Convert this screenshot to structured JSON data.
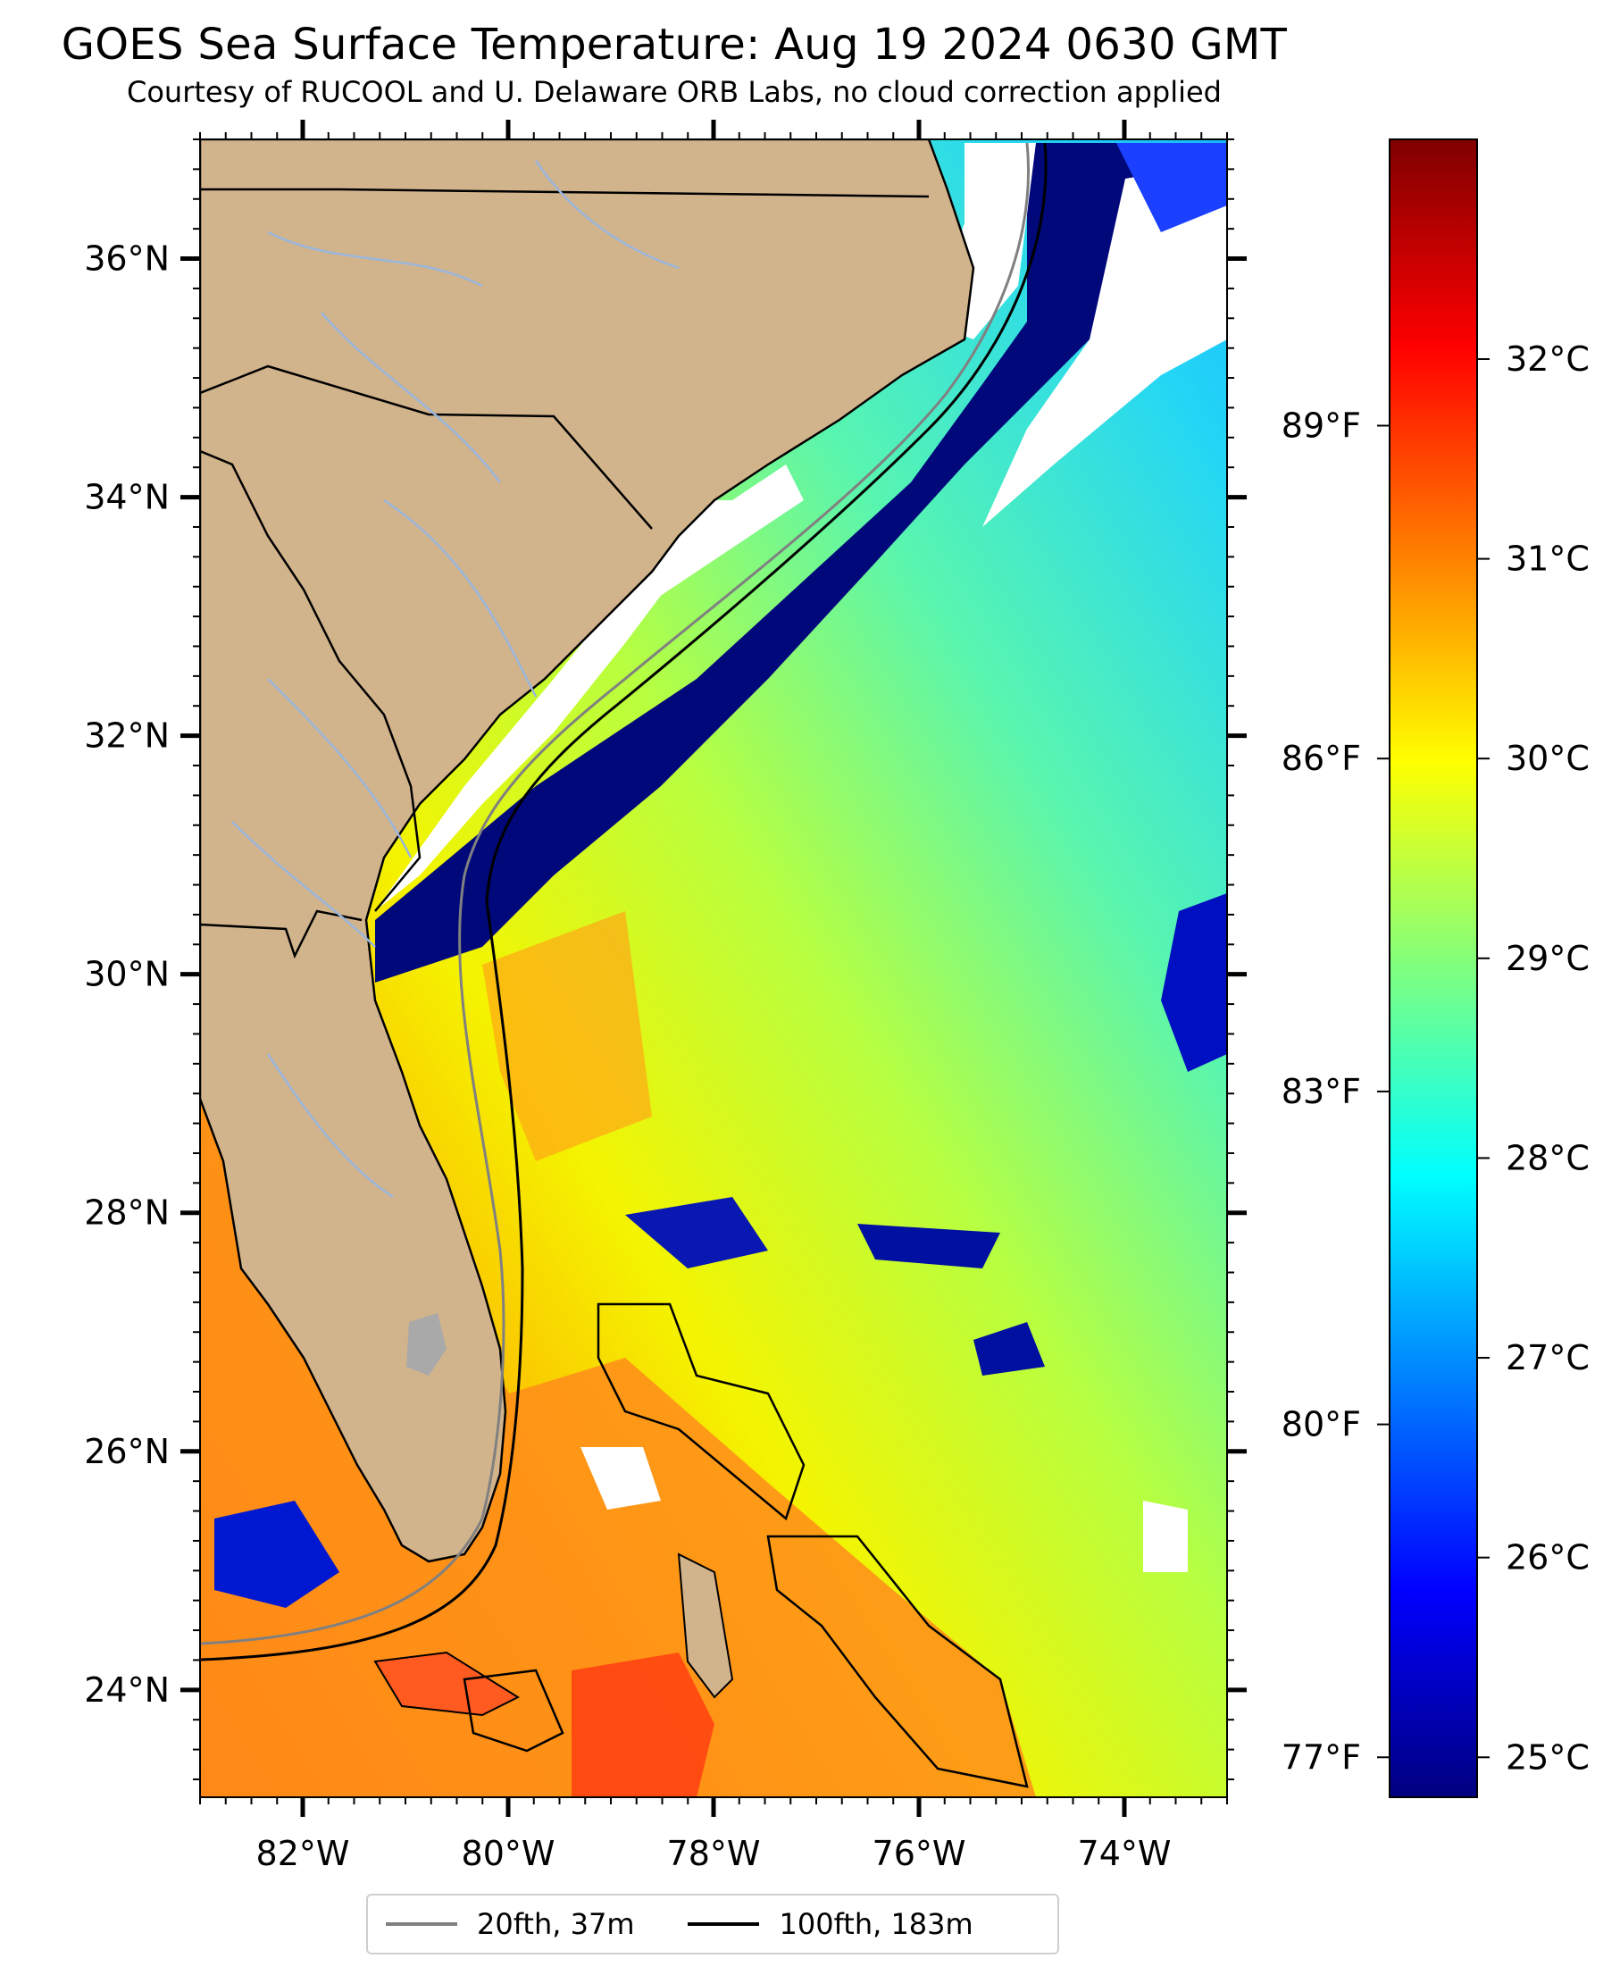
{
  "title": "GOES Sea Surface Temperature: Aug 19 2024 0630 GMT",
  "subtitle": "Courtesy of RUCOOL and U. Delaware ORB Labs, no cloud correction applied",
  "map": {
    "lat_ticks": [
      "36°N",
      "34°N",
      "32°N",
      "30°N",
      "28°N",
      "26°N",
      "24°N"
    ],
    "lon_ticks": [
      "82°W",
      "80°W",
      "78°W",
      "76°W",
      "74°W"
    ],
    "lat_range": [
      23.1,
      37.0
    ],
    "lon_range": [
      -83.0,
      -73.0
    ]
  },
  "colorbar": {
    "celsius_labels": [
      "32°C",
      "31°C",
      "30°C",
      "29°C",
      "28°C",
      "27°C",
      "26°C",
      "25°C"
    ],
    "fahrenheit_labels": [
      "89°F",
      "86°F",
      "83°F",
      "80°F",
      "77°F"
    ],
    "celsius_range": [
      24.8,
      33.1
    ],
    "colormap": [
      "#00007f",
      "#0000ff",
      "#007fff",
      "#00ffff",
      "#7fff7f",
      "#ffff00",
      "#ff7f00",
      "#ff0000",
      "#7f0000"
    ]
  },
  "legend": {
    "items": [
      {
        "label": "20fth, 37m",
        "color": "#808080"
      },
      {
        "label": "100fth, 183m",
        "color": "#000000"
      }
    ]
  },
  "colors": {
    "land": "#d2b48c",
    "cloud_mask": "#ffffff",
    "rivers": "#9ab6dc",
    "lake": "#a9a9a9"
  }
}
